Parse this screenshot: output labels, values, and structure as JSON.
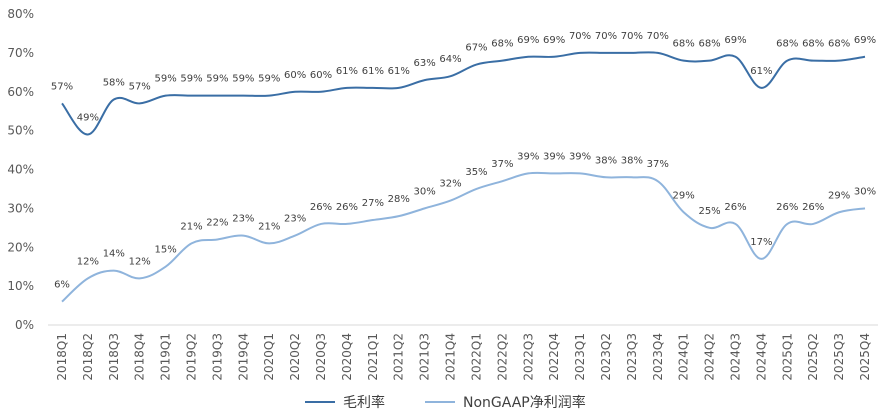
{
  "chart_data": {
    "type": "line",
    "categories": [
      "2018Q1",
      "2018Q2",
      "2018Q3",
      "2018Q4",
      "2019Q1",
      "2019Q2",
      "2019Q3",
      "2019Q4",
      "2020Q1",
      "2020Q2",
      "2020Q3",
      "2020Q4",
      "2021Q1",
      "2021Q2",
      "2021Q3",
      "2021Q4",
      "2022Q1",
      "2022Q2",
      "2022Q3",
      "2022Q4",
      "2023Q1",
      "2023Q2",
      "2023Q3",
      "2023Q4",
      "2024Q1",
      "2024Q2",
      "2024Q3",
      "2024Q4",
      "2025Q1",
      "2025Q2",
      "2025Q3",
      "2025Q4"
    ],
    "series": [
      {
        "name": "毛利率",
        "color": "#3a6ea5",
        "values": [
          57,
          49,
          58,
          57,
          59,
          59,
          59,
          59,
          59,
          60,
          60,
          61,
          61,
          61,
          63,
          64,
          67,
          68,
          69,
          69,
          70,
          70,
          70,
          70,
          68,
          68,
          69,
          61,
          68,
          68,
          68,
          69
        ],
        "labels": [
          "57%",
          "49%",
          "58%",
          "57%",
          "59%",
          "59%",
          "59%",
          "59%",
          "59%",
          "60%",
          "60%",
          "61%",
          "61%",
          "61%",
          "63%",
          "64%",
          "67%",
          "68%",
          "69%",
          "69%",
          "70%",
          "70%",
          "70%",
          "70%",
          "68%",
          "68%",
          "69%",
          "61%",
          "68%",
          "68%",
          "68%",
          "69%"
        ]
      },
      {
        "name": "NonGAAP净利润率",
        "color": "#8fb4dc",
        "values": [
          6,
          12,
          14,
          12,
          15,
          21,
          22,
          23,
          21,
          23,
          26,
          26,
          27,
          28,
          30,
          32,
          35,
          37,
          39,
          39,
          39,
          38,
          38,
          37,
          29,
          25,
          26,
          17,
          26,
          26,
          29,
          30
        ],
        "labels": [
          "6%",
          "12%",
          "14%",
          "12%",
          "15%",
          "21%",
          "22%",
          "23%",
          "21%",
          "23%",
          "26%",
          "26%",
          "27%",
          "28%",
          "30%",
          "32%",
          "35%",
          "37%",
          "39%",
          "39%",
          "39%",
          "38%",
          "38%",
          "37%",
          "29%",
          "25%",
          "26%",
          "17%",
          "26%",
          "26%",
          "29%",
          "30%"
        ]
      }
    ],
    "ylim": [
      0,
      80
    ],
    "yticks": [
      0,
      10,
      20,
      30,
      40,
      50,
      60,
      70,
      80
    ],
    "ytick_labels": [
      "0%",
      "10%",
      "20%",
      "30%",
      "40%",
      "50%",
      "60%",
      "70%",
      "80%"
    ],
    "legend_position": "bottom",
    "grid": false
  }
}
